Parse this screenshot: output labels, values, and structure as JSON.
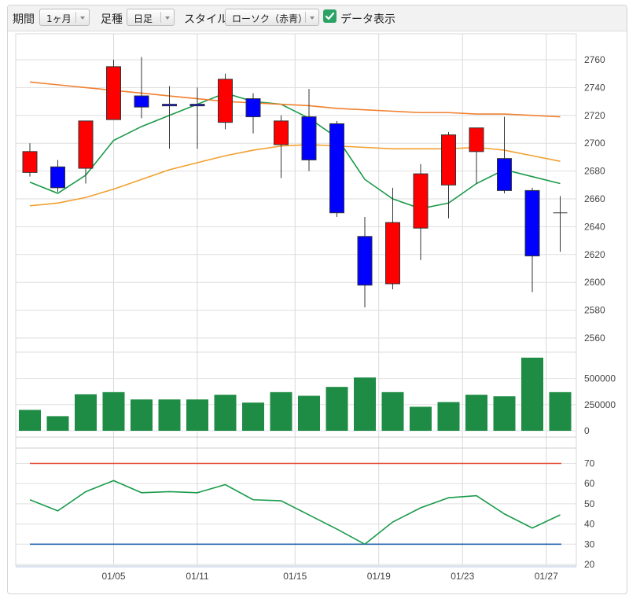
{
  "toolbar": {
    "period_label": "期間",
    "period_value": "1ヶ月",
    "bar_label": "足種",
    "bar_value": "日足",
    "style_label": "スタイル",
    "style_value": "ローソク（赤青）",
    "data_display_label": "データ表示",
    "data_display_checked": true
  },
  "chart_data": [
    {
      "type": "candlestick",
      "title": "",
      "yticks": [
        2560,
        2580,
        2600,
        2620,
        2640,
        2660,
        2680,
        2700,
        2720,
        2740,
        2760
      ],
      "ylim": [
        2555,
        2772
      ],
      "up_color": "#ff0000",
      "down_color": "#0000ff",
      "candles": [
        {
          "o": 2679,
          "h": 2700,
          "l": 2676,
          "c": 2694
        },
        {
          "o": 2683,
          "h": 2688,
          "l": 2665,
          "c": 2668
        },
        {
          "o": 2682,
          "h": 2716,
          "l": 2671,
          "c": 2716
        },
        {
          "o": 2717,
          "h": 2760,
          "l": 2717,
          "c": 2755
        },
        {
          "o": 2734,
          "h": 2762,
          "l": 2718,
          "c": 2726
        },
        {
          "o": 2728,
          "h": 2741,
          "l": 2696,
          "c": 2727
        },
        {
          "o": 2728,
          "h": 2740,
          "l": 2696,
          "c": 2727
        },
        {
          "o": 2715,
          "h": 2750,
          "l": 2710,
          "c": 2746
        },
        {
          "o": 2732,
          "h": 2736,
          "l": 2707,
          "c": 2719
        },
        {
          "o": 2699,
          "h": 2720,
          "l": 2675,
          "c": 2716
        },
        {
          "o": 2719,
          "h": 2739,
          "l": 2680,
          "c": 2688
        },
        {
          "o": 2714,
          "h": 2716,
          "l": 2647,
          "c": 2650
        },
        {
          "o": 2633,
          "h": 2647,
          "l": 2582,
          "c": 2598
        },
        {
          "o": 2599,
          "h": 2668,
          "l": 2595,
          "c": 2643
        },
        {
          "o": 2639,
          "h": 2685,
          "l": 2616,
          "c": 2678
        },
        {
          "o": 2670,
          "h": 2708,
          "l": 2646,
          "c": 2706
        },
        {
          "o": 2694,
          "h": 2711,
          "l": 2671,
          "c": 2711
        },
        {
          "o": 2689,
          "h": 2719,
          "l": 2664,
          "c": 2666
        },
        {
          "o": 2666,
          "h": 2668,
          "l": 2593,
          "c": 2619
        },
        {
          "o": 2650,
          "h": 2662,
          "l": 2622,
          "c": 2650
        }
      ],
      "moving_averages": [
        {
          "color": "#1a9a4a",
          "values": [
            2672,
            2664,
            2677,
            2702,
            2712,
            2720,
            2728,
            2736,
            2730,
            2728,
            2718,
            2704,
            2674,
            2660,
            2653,
            2657,
            2671,
            2681,
            2676,
            2671
          ]
        },
        {
          "color": "#f0a030",
          "values": [
            2655,
            2657,
            2661,
            2667,
            2674,
            2681,
            2686,
            2691,
            2695,
            2698,
            2699,
            2698,
            2697,
            2696,
            2696,
            2696,
            2697,
            2695,
            2691,
            2687
          ]
        },
        {
          "color": "#f08030",
          "values": [
            2744,
            2742,
            2740,
            2738,
            2736,
            2734,
            2732,
            2730,
            2729,
            2728,
            2727,
            2725,
            2724,
            2723,
            2722,
            2722,
            2721,
            2721,
            2720,
            2719
          ]
        }
      ]
    },
    {
      "type": "bar",
      "title": "",
      "yticks": [
        0,
        250000,
        500000
      ],
      "ylim": [
        0,
        700000
      ],
      "color": "#1e8c44",
      "values": [
        200000,
        140000,
        350000,
        370000,
        300000,
        300000,
        300000,
        345000,
        270000,
        370000,
        335000,
        420000,
        510000,
        370000,
        230000,
        275000,
        345000,
        330000,
        700000,
        370000
      ]
    },
    {
      "type": "line",
      "title": "",
      "yticks": [
        20,
        30,
        40,
        50,
        60,
        70
      ],
      "ylim": [
        20,
        76
      ],
      "color": "#1a9a4a",
      "values": [
        52,
        46.5,
        56,
        61.5,
        55.5,
        56,
        55.5,
        59.5,
        52,
        51.5,
        44.5,
        37.5,
        30,
        41,
        48,
        53,
        54,
        45,
        38,
        44.5
      ],
      "reference_lines": [
        {
          "value": 70,
          "color": "#e2442a"
        },
        {
          "value": 30,
          "color": "#2a66b0"
        }
      ]
    }
  ],
  "xaxis": {
    "tick_labels": [
      {
        "label": "01/05",
        "index": 3
      },
      {
        "label": "01/11",
        "index": 6
      },
      {
        "label": "01/15",
        "index": 9.5
      },
      {
        "label": "01/19",
        "index": 12.5
      },
      {
        "label": "01/23",
        "index": 15.5
      },
      {
        "label": "01/27",
        "index": 18.5
      }
    ]
  }
}
